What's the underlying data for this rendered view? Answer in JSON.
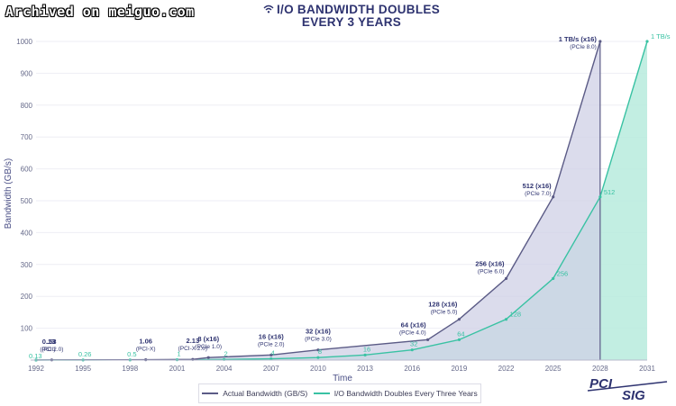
{
  "watermark": "Archived on meiguo.com",
  "title": {
    "line1": "I/O BANDWIDTH DOUBLES",
    "line2": "EVERY 3 YEARS",
    "icon": "wifi-icon"
  },
  "logo": {
    "text_top": "PCI",
    "text_bottom": "SIG"
  },
  "colors": {
    "actual": "#5b5b86",
    "actual_fill": "#cfd0e6",
    "trend": "#39c2a3",
    "trend_fill": "#b7ebdd",
    "label_dark": "#2e3370"
  },
  "chart_data": {
    "type": "area",
    "xlabel": "Time",
    "ylabel": "Bandwidth (GB/s)",
    "ylim": [
      0,
      1000
    ],
    "xlim": [
      1992,
      2031
    ],
    "x_ticks": [
      "1992",
      "1995",
      "1998",
      "2001",
      "2004",
      "2007",
      "2010",
      "2013",
      "2016",
      "2019",
      "2022",
      "2025",
      "2028",
      "2031"
    ],
    "y_ticks": [
      "100",
      "200",
      "300",
      "400",
      "500",
      "600",
      "700",
      "800",
      "900",
      "1000"
    ],
    "grid": true,
    "legend_position": "bottom",
    "series": [
      {
        "name": "Actual Bandwidth (GB/S)",
        "points": [
          {
            "x": 1992,
            "y": 0.13,
            "label": "0.13",
            "sub": "(PCI)"
          },
          {
            "x": 1993,
            "y": 0.53,
            "label": ".53",
            "sub": "(PCI 2.0)"
          },
          {
            "x": 1999,
            "y": 1.06,
            "label": "1.06",
            "sub": "(PCI-X)"
          },
          {
            "x": 2002,
            "y": 2.13,
            "label": "2.13",
            "sub": "(PCI-X 2.0)"
          },
          {
            "x": 2003,
            "y": 8,
            "label": "8 (x16)",
            "sub": "(PCIe 1.0)"
          },
          {
            "x": 2007,
            "y": 16,
            "label": "16 (x16)",
            "sub": "(PCIe 2.0)"
          },
          {
            "x": 2010,
            "y": 32,
            "label": "32 (x16)",
            "sub": "(PCIe 3.0)"
          },
          {
            "x": 2017,
            "y": 64,
            "label": "64 (x16)",
            "sub": "(PCIe 4.0)"
          },
          {
            "x": 2019,
            "y": 128,
            "label": "128 (x16)",
            "sub": "(PCIe 5.0)"
          },
          {
            "x": 2022,
            "y": 256,
            "label": "256 (x16)",
            "sub": "(PCIe 6.0)"
          },
          {
            "x": 2025,
            "y": 512,
            "label": "512 (x16)",
            "sub": "(PCIe 7.0)"
          },
          {
            "x": 2028,
            "y": 1000,
            "label": "1 TB/s (x16)",
            "sub": "(PCIe 8.0)"
          }
        ]
      },
      {
        "name": "I/O Bandwidth Doubles Every Three Years",
        "points": [
          {
            "x": 1992,
            "y": 0.13,
            "label": "0.13"
          },
          {
            "x": 1995,
            "y": 0.26,
            "label": "0.26"
          },
          {
            "x": 1998,
            "y": 0.5,
            "label": "0.5"
          },
          {
            "x": 2001,
            "y": 1,
            "label": "1"
          },
          {
            "x": 2004,
            "y": 2,
            "label": "2"
          },
          {
            "x": 2007,
            "y": 4,
            "label": "4"
          },
          {
            "x": 2010,
            "y": 8,
            "label": "8"
          },
          {
            "x": 2013,
            "y": 16,
            "label": "16"
          },
          {
            "x": 2016,
            "y": 32,
            "label": "32"
          },
          {
            "x": 2019,
            "y": 64,
            "label": "64"
          },
          {
            "x": 2022,
            "y": 128,
            "label": "128"
          },
          {
            "x": 2025,
            "y": 256,
            "label": "256"
          },
          {
            "x": 2028,
            "y": 512,
            "label": "512"
          },
          {
            "x": 2031,
            "y": 1000,
            "label": "1 TB/s"
          }
        ]
      }
    ]
  }
}
